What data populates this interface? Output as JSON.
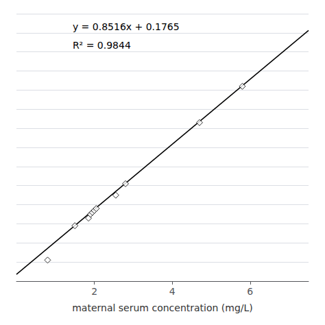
{
  "chart_data": {
    "type": "scatter",
    "xlabel": "maternal serum concentration (mg/L)",
    "annotations": [
      "y = 0.8516x + 0.1765",
      "R² = 0.9844"
    ],
    "xlim": [
      0,
      7.5
    ],
    "xticks": [
      2,
      4,
      6
    ],
    "ylim": [
      0,
      7.0
    ],
    "yticks": [
      0.5,
      1.0,
      1.5,
      2.0,
      2.5,
      3.0,
      3.5,
      4.0,
      4.5,
      5.0,
      5.5,
      6.0,
      6.5,
      7.0
    ],
    "grid": true,
    "tick_labels": "x",
    "series": [
      {
        "type": "line",
        "line_style": "solid",
        "color": "#000000",
        "x": [
          0.0,
          7.5
        ],
        "values": [
          0.1765,
          6.5635
        ]
      },
      {
        "type": "scatter",
        "marker": "diamond",
        "color": "#000000",
        "x": [
          0.8,
          1.5,
          1.85,
          1.9,
          1.95,
          2.0,
          2.05,
          2.55,
          2.8,
          4.7,
          5.8
        ],
        "values": [
          0.55,
          1.45,
          1.65,
          1.75,
          1.8,
          1.85,
          1.9,
          2.25,
          2.55,
          4.15,
          5.1
        ]
      }
    ]
  }
}
